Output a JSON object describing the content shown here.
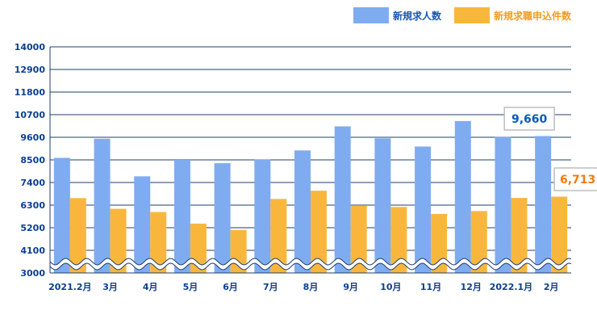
{
  "chart_data": {
    "type": "bar",
    "categories": [
      "2021.2月",
      "3月",
      "4月",
      "5月",
      "6月",
      "7月",
      "8月",
      "9月",
      "10月",
      "11月",
      "12月",
      "2022.1月",
      "2月"
    ],
    "series": [
      {
        "name": "新規求人数",
        "color": "#7facf0",
        "values": [
          8600,
          9530,
          7700,
          8500,
          8340,
          8510,
          8960,
          10130,
          9550,
          9150,
          10390,
          9610,
          9660
        ]
      },
      {
        "name": "新規求職申込件数",
        "color": "#f8b73c",
        "values": [
          6640,
          6120,
          5960,
          5400,
          5090,
          6600,
          7000,
          6290,
          6210,
          5870,
          6010,
          6650,
          6713
        ]
      }
    ],
    "yticks": [
      3000,
      4100,
      5200,
      6300,
      7400,
      8500,
      9600,
      10700,
      11800,
      12900,
      14000
    ],
    "ylim": [
      3000,
      14000
    ],
    "axis_break": true,
    "grid": true,
    "legend_position": "top-right",
    "callouts": [
      {
        "text": "9,660",
        "color": "#0b5bb5"
      },
      {
        "text": "6,713",
        "color": "#f07b14"
      }
    ]
  }
}
